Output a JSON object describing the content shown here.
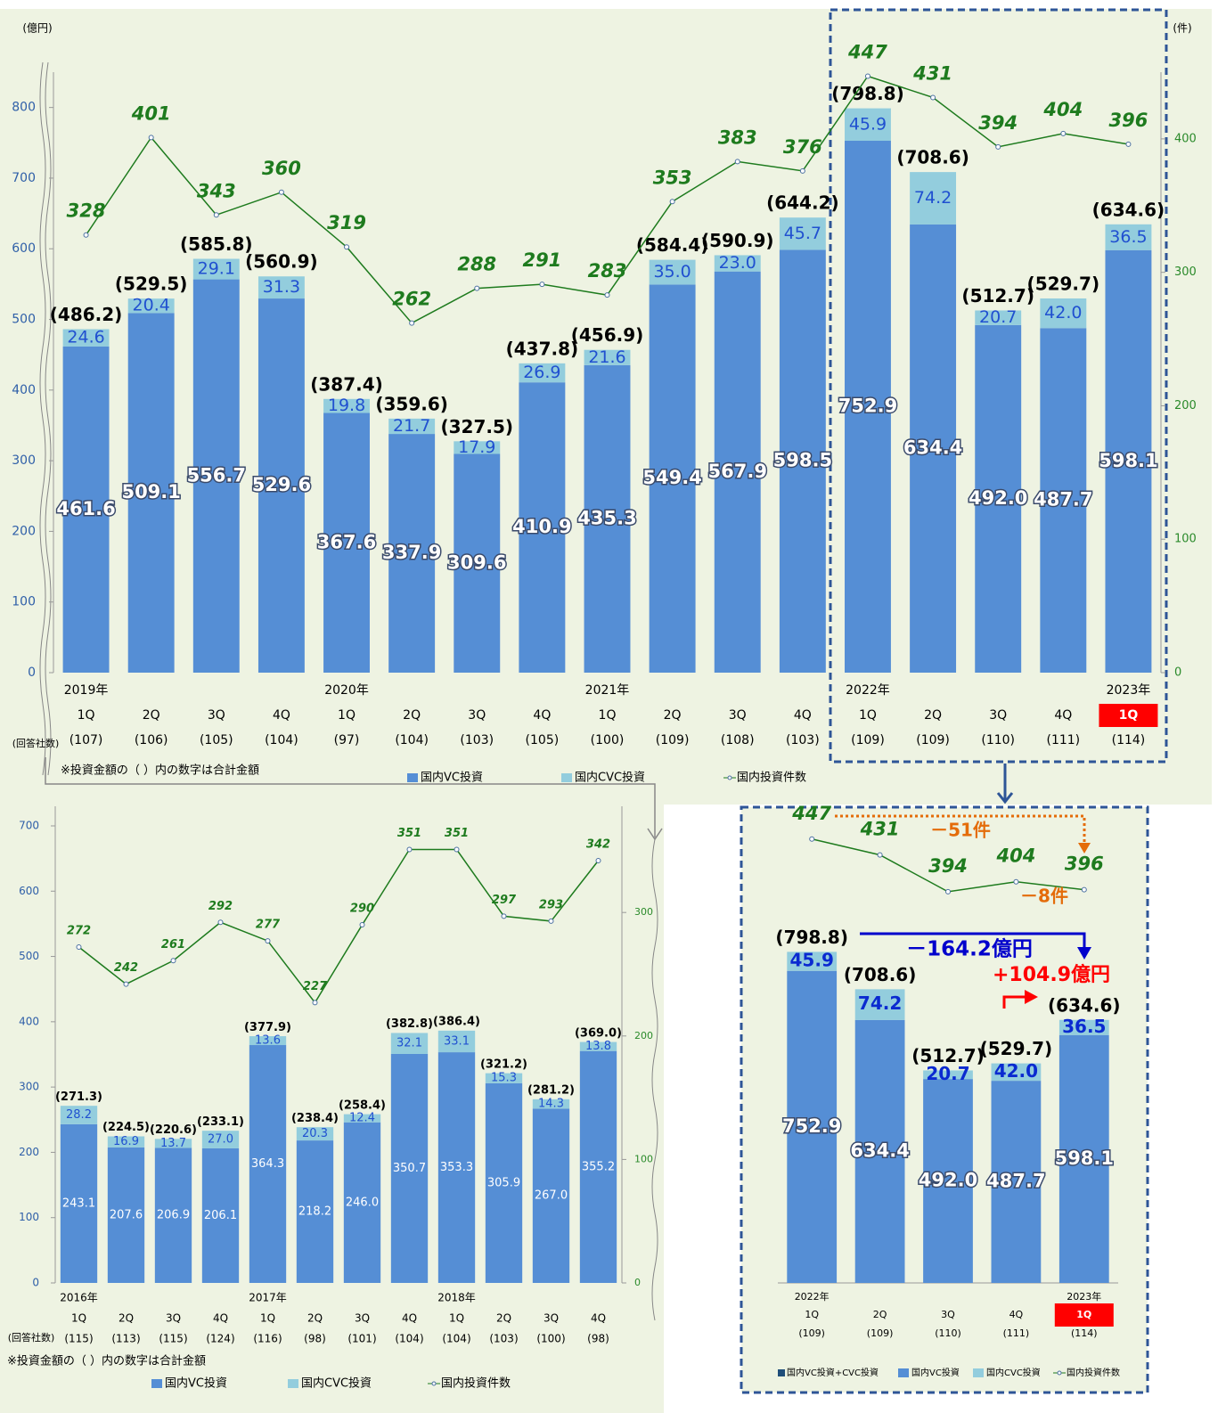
{
  "chart_data": [
    {
      "type": "bar",
      "y_unit": "(億円)",
      "y2_unit": "(件)",
      "respondents_title": "(回答社数)",
      "note": "※投資金額の（ ）内の数字は合計金額",
      "ylim": [
        0,
        850
      ],
      "yticks": [
        0,
        100,
        200,
        300,
        400,
        500,
        600,
        700,
        800
      ],
      "y2lim": [
        0,
        450
      ],
      "y2ticks": [
        0,
        100,
        200,
        300,
        400
      ],
      "years": [
        "2019年",
        null,
        null,
        null,
        "2020年",
        null,
        null,
        null,
        "2021年",
        null,
        null,
        null,
        "2022年",
        null,
        null,
        null,
        "2023年"
      ],
      "categories": [
        "1Q",
        "2Q",
        "3Q",
        "4Q",
        "1Q",
        "2Q",
        "3Q",
        "4Q",
        "1Q",
        "2Q",
        "3Q",
        "4Q",
        "1Q",
        "2Q",
        "3Q",
        "4Q",
        "1Q"
      ],
      "respondents": [
        "(107)",
        "(106)",
        "(105)",
        "(104)",
        "(97)",
        "(104)",
        "(103)",
        "(105)",
        "(100)",
        "(109)",
        "(108)",
        "(103)",
        "(109)",
        "(109)",
        "(110)",
        "(111)",
        "(114)"
      ],
      "highlight": {
        "index": 16,
        "color": "#ff0000"
      },
      "total_labels": [
        "(486.2)",
        "(529.5)",
        "(585.8)",
        "(560.9)",
        "(387.4)",
        "(359.6)",
        "(327.5)",
        "(437.8)",
        "(456.9)",
        "(584.4)",
        "(590.9)",
        "(644.2)",
        "(798.8)",
        "(708.6)",
        "(512.7)",
        "(529.7)",
        "(634.6)"
      ],
      "series": [
        {
          "name": "国内VC投資",
          "color": "#558ed5",
          "values": [
            461.6,
            509.1,
            556.7,
            529.6,
            367.6,
            337.9,
            309.6,
            410.9,
            435.3,
            549.4,
            567.9,
            598.5,
            752.9,
            634.4,
            492.0,
            487.7,
            598.1
          ],
          "value_labels": [
            "461.6",
            "509.1",
            "556.7",
            "529.6",
            "367.6",
            "337.9",
            "309.6",
            "410.9",
            "435.3",
            "549.4",
            "567.9",
            "598.5",
            "752.9",
            "634.4",
            "492.0",
            "487.7",
            "598.1"
          ]
        },
        {
          "name": "国内CVC投資",
          "color": "#93cddd",
          "values": [
            24.6,
            20.4,
            29.1,
            31.3,
            19.8,
            21.7,
            17.9,
            26.9,
            21.6,
            35.0,
            23.0,
            45.7,
            45.9,
            74.2,
            20.7,
            42.0,
            36.5
          ],
          "value_labels": [
            "24.6",
            "20.4",
            "29.1",
            "31.3",
            "19.8",
            "21.7",
            "17.9",
            "26.9",
            "21.6",
            "35.0",
            "23.0",
            "45.7",
            "45.9",
            "74.2",
            "20.7",
            "42.0",
            "36.5"
          ]
        },
        {
          "name": "国内投資件数",
          "color": "#1e7b1e",
          "type": "line",
          "axis": "y2",
          "values": [
            328,
            401,
            343,
            360,
            319,
            262,
            288,
            291,
            283,
            353,
            383,
            376,
            447,
            431,
            394,
            404,
            396
          ]
        }
      ]
    },
    {
      "type": "bar",
      "respondents_title": "(回答社数)",
      "note": "※投資金額の（ ）内の数字は合計金額",
      "ylim": [
        0,
        730
      ],
      "yticks": [
        0,
        100,
        200,
        300,
        400,
        500,
        600,
        700
      ],
      "y2lim": [
        0,
        386
      ],
      "y2ticks": [
        0,
        100,
        200,
        300
      ],
      "years": [
        "2016年",
        null,
        null,
        null,
        "2017年",
        null,
        null,
        null,
        "2018年",
        null,
        null,
        null
      ],
      "categories": [
        "1Q",
        "2Q",
        "3Q",
        "4Q",
        "1Q",
        "2Q",
        "3Q",
        "4Q",
        "1Q",
        "2Q",
        "3Q",
        "4Q"
      ],
      "respondents": [
        "(115)",
        "(113)",
        "(115)",
        "(124)",
        "(116)",
        "(98)",
        "(101)",
        "(104)",
        "(104)",
        "(103)",
        "(100)",
        "(98)"
      ],
      "total_labels": [
        "(271.3)",
        "(224.5)",
        "(220.6)",
        "(233.1)",
        "(377.9)",
        "(238.4)",
        "(258.4)",
        "(382.8)",
        "(386.4)",
        "(321.2)",
        "(281.2)",
        "(369.0)"
      ],
      "series": [
        {
          "name": "国内VC投資",
          "color": "#558ed5",
          "values": [
            243.1,
            207.6,
            206.9,
            206.1,
            364.3,
            218.2,
            246.0,
            350.7,
            353.3,
            305.9,
            267.0,
            355.2
          ],
          "value_labels": [
            "243.1",
            "207.6",
            "206.9",
            "206.1",
            "364.3",
            "218.2",
            "246.0",
            "350.7",
            "353.3",
            "305.9",
            "267.0",
            "355.2"
          ]
        },
        {
          "name": "国内CVC投資",
          "color": "#93cddd",
          "values": [
            28.2,
            16.9,
            13.7,
            27.0,
            13.6,
            20.3,
            12.4,
            32.1,
            33.1,
            15.3,
            14.3,
            13.8
          ],
          "value_labels": [
            "28.2",
            "16.9",
            "13.7",
            "27.0",
            "13.6",
            "20.3",
            "12.4",
            "32.1",
            "33.1",
            "15.3",
            "14.3",
            "13.8"
          ]
        },
        {
          "name": "国内投資件数",
          "color": "#1e7b1e",
          "type": "line",
          "axis": "y2",
          "values": [
            272,
            242,
            261,
            292,
            277,
            227,
            290,
            351,
            351,
            297,
            293,
            342
          ]
        }
      ]
    },
    {
      "type": "bar",
      "ylim": [
        0,
        1150
      ],
      "y2lim": [
        0,
        480
      ],
      "years": [
        "2022年",
        null,
        null,
        null,
        "2023年"
      ],
      "categories": [
        "1Q",
        "2Q",
        "3Q",
        "4Q",
        "1Q"
      ],
      "respondents": [
        "(109)",
        "(109)",
        "(110)",
        "(111)",
        "(114)"
      ],
      "highlight": {
        "index": 4,
        "color": "#ff0000"
      },
      "total_labels": [
        "(798.8)",
        "(708.6)",
        "(512.7)",
        "(529.7)",
        "(634.6)"
      ],
      "legend_extra": {
        "name": "国内VC投資+CVC投資",
        "color": "#1f4e79"
      },
      "annotations": [
        {
          "text": "－51件",
          "color": "#e46c0a"
        },
        {
          "text": "－8件",
          "color": "#e46c0a"
        },
        {
          "text": "－164.2億円",
          "color": "#0000cc"
        },
        {
          "text": "+104.9億円",
          "color": "#ff0000"
        }
      ],
      "series": [
        {
          "name": "国内VC投資",
          "color": "#558ed5",
          "values": [
            752.9,
            634.4,
            492.0,
            487.7,
            598.1
          ],
          "value_labels": [
            "752.9",
            "634.4",
            "492.0",
            "487.7",
            "598.1"
          ]
        },
        {
          "name": "国内CVC投資",
          "color": "#93cddd",
          "values": [
            45.9,
            74.2,
            20.7,
            42.0,
            36.5
          ],
          "value_labels": [
            "45.9",
            "74.2",
            "20.7",
            "42.0",
            "36.5"
          ]
        },
        {
          "name": "国内投資件数",
          "color": "#1e7b1e",
          "type": "line",
          "axis": "y2",
          "values": [
            447,
            431,
            394,
            404,
            396
          ]
        }
      ]
    }
  ]
}
